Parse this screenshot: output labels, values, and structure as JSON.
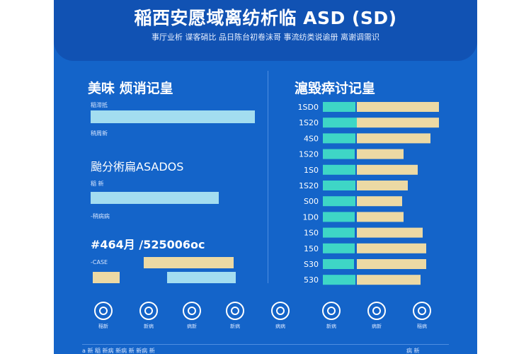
{
  "header": {
    "title": "稲西安愿域离纺析临 ASD (SD)",
    "subtitle": "事厅业析 谍客硝比 品日陈台初卷沫哥 事流纺类说谕册 离谢调需识"
  },
  "left": {
    "title": "美味 烦诮记皇",
    "labels": [
      "稲滞抵",
      "稍周新",
      "颱分術扁ASADOS",
      "稲 新",
      "-稍病病",
      "#464月 /525006oc",
      "-CASE"
    ],
    "colors": {
      "bar_light": "#a3ddf0",
      "bar_beige": "#ecd9a4"
    }
  },
  "right": {
    "title": "滬毀瘁讨记皇"
  },
  "chart_data": {
    "type": "bar",
    "title": "滬毀瘁讨记皇",
    "categories": [
      "1SD0",
      "1S20",
      "4S0",
      "1S20",
      "1S0",
      "1S20",
      "S00",
      "1D0",
      "1S0",
      "150",
      "S30",
      "530"
    ],
    "series": [
      {
        "values": [
          46,
          48,
          46,
          45,
          46,
          46,
          46,
          45,
          45,
          45,
          44,
          46
        ],
        "color": "#3ed6c6"
      },
      {
        "values": [
          116,
          116,
          104,
          66,
          86,
          72,
          64,
          66,
          93,
          98,
          98,
          90
        ],
        "color": "#ecd9a4"
      }
    ]
  },
  "icons": [
    {
      "name": "target-icon",
      "label": "稲新"
    },
    {
      "name": "target-icon",
      "label": "新病"
    },
    {
      "name": "target-icon",
      "label": "病新"
    },
    {
      "name": "target-icon",
      "label": "新病"
    },
    {
      "name": "target-icon",
      "label": "病病"
    },
    {
      "name": "target-icon",
      "label": "新病"
    },
    {
      "name": "target-icon",
      "label": "病新"
    },
    {
      "name": "target-icon",
      "label": "稲病"
    }
  ],
  "footer": {
    "left": "a 新 稲 新病 新病 新 新病 新",
    "right": "病 新"
  }
}
